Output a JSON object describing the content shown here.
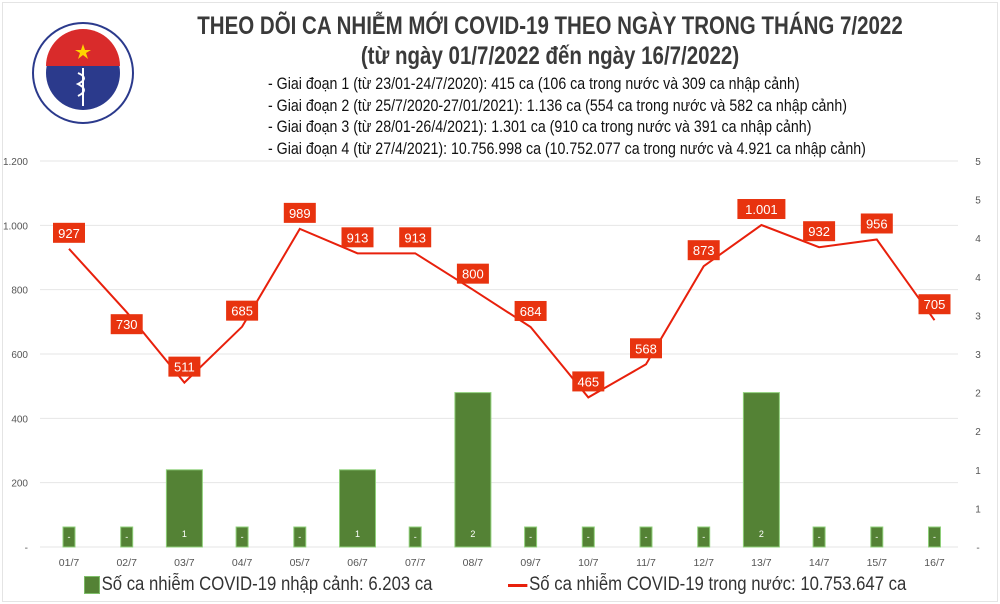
{
  "header": {
    "title": "THEO DÕI CA NHIỄM MỚI COVID-19 THEO NGÀY TRONG THÁNG 7/2022",
    "subtitle": "(từ ngày 01/7/2022 đến ngày 16/7/2022)",
    "logo_text": "BỘ Y TẾ · MINISTRY OF HEALTH",
    "notes": [
      "- Giai đoạn 1 (từ 23/01-24/7/2020): 415 ca (106 ca trong nước và 309 ca nhập cảnh)",
      "- Giai đoạn 2 (từ 25/7/2020-27/01/2021): 1.136 ca (554 ca trong nước và 582 ca nhập cảnh)",
      "- Giai đoạn 3 (từ 28/01-26/4/2021): 1.301 ca (910 ca trong nước và 391 ca nhập cảnh)",
      "- Giai đoạn 4 (từ 27/4/2021): 10.756.998 ca (10.752.077 ca trong nước và 4.921 ca nhập cảnh)"
    ]
  },
  "chart_data": {
    "type": "bar+line",
    "categories": [
      "01/7",
      "02/7",
      "03/7",
      "04/7",
      "05/7",
      "06/7",
      "07/7",
      "08/7",
      "09/7",
      "10/7",
      "11/7",
      "12/7",
      "13/7",
      "14/7",
      "15/7",
      "16/7"
    ],
    "series": [
      {
        "name": "Số ca nhiễm COVID-19 nhập cảnh: 6.203 ca",
        "type": "bar",
        "axis": "right",
        "color": "#548235",
        "values": [
          0,
          0,
          1,
          0,
          0,
          1,
          0,
          2,
          0,
          0,
          0,
          0,
          2,
          0,
          0,
          0
        ],
        "labels": [
          "-",
          "-",
          "1",
          "-",
          "-",
          "1",
          "-",
          "2",
          "-",
          "-",
          "-",
          "-",
          "2",
          "-",
          "-",
          "-"
        ]
      },
      {
        "name": "Số ca nhiễm COVID-19 trong nước: 10.753.647 ca",
        "type": "line",
        "axis": "left",
        "color": "#e8200c",
        "values": [
          927,
          730,
          511,
          685,
          989,
          913,
          913,
          800,
          684,
          465,
          568,
          873,
          1001,
          932,
          956,
          705
        ],
        "labels": [
          "927",
          "730",
          "511",
          "685",
          "989",
          "913",
          "913",
          "800",
          "684",
          "465",
          "568",
          "873",
          "1.001",
          "932",
          "956",
          "705"
        ]
      }
    ],
    "left_axis": {
      "ylim": [
        0,
        1200
      ],
      "ticks": [
        "-",
        "200",
        "400",
        "600",
        "800",
        "1.000",
        "1.200"
      ]
    },
    "right_axis": {
      "ylim": [
        0,
        5
      ],
      "ticks": [
        "-",
        "1",
        "1",
        "2",
        "2",
        "3",
        "3",
        "4",
        "4",
        "5",
        "5"
      ]
    },
    "grid": true,
    "legend": "bottom"
  }
}
